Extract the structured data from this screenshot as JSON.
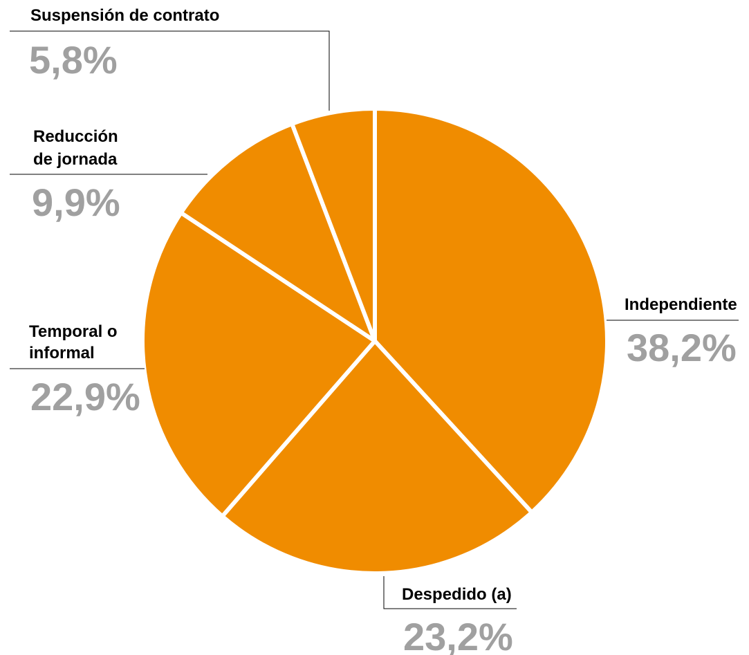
{
  "chart_data": {
    "type": "pie",
    "slices": [
      {
        "name": "Independiente",
        "value_label": "38,2%",
        "value": 38.2
      },
      {
        "name": "Despedido (a)",
        "value_label": "23,2%",
        "value": 23.2
      },
      {
        "name": "Temporal o informal",
        "lines": [
          "Temporal o",
          "informal"
        ],
        "value_label": "22,9%",
        "value": 22.9
      },
      {
        "name": "Reducción de jornada",
        "lines": [
          "Reducción",
          "de jornada"
        ],
        "value_label": "9,9%",
        "value": 9.9
      },
      {
        "name": "Suspensión de contrato",
        "value_label": "5,8%",
        "value": 5.8
      }
    ],
    "colors": {
      "slice": "#f08c00",
      "separator": "#ffffff",
      "value_text": "#a0a0a0",
      "label_text": "#000000"
    },
    "start": "12 o'clock",
    "direction": "clockwise"
  }
}
